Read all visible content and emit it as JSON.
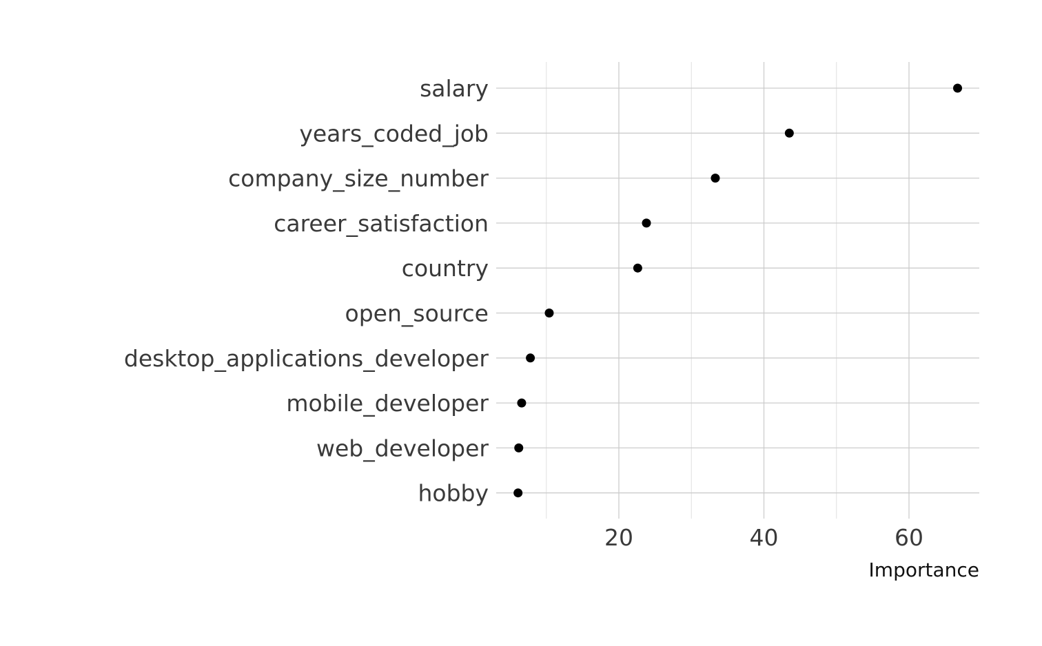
{
  "chart_data": {
    "type": "scatter",
    "title": "",
    "xlabel": "Importance",
    "ylabel": "",
    "xlim": [
      3,
      70
    ],
    "x_ticks": [
      20,
      40,
      60
    ],
    "x_tick_labels": [
      "20",
      "40",
      "60"
    ],
    "x_minor_ticks": [
      10,
      30,
      50
    ],
    "grid": true,
    "legend": "none",
    "point_color": "#000000",
    "grid_color": "#cccccc",
    "categories": [
      "salary",
      "years_coded_job",
      "company_size_number",
      "career_satisfaction",
      "country",
      "open_source",
      "desktop_applications_developer",
      "mobile_developer",
      "web_developer",
      "hobby"
    ],
    "values": [
      66.7,
      43.5,
      33.3,
      23.8,
      22.6,
      10.4,
      7.8,
      6.6,
      6.2,
      6.1
    ]
  }
}
